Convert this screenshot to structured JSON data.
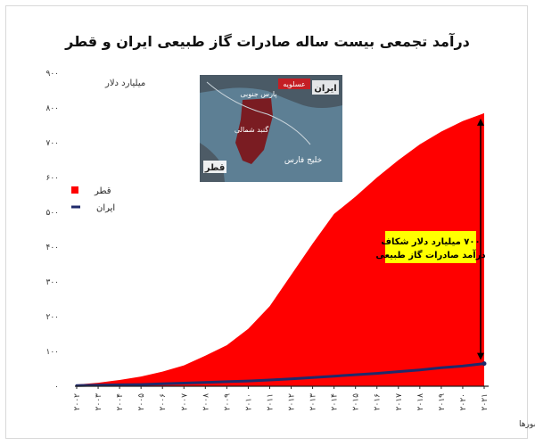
{
  "chart_data": {
    "type": "area",
    "title": "درآمد تجمعی بیست ساله صادرات گاز طبیعی ایران و قطر",
    "ylabel": "میلیارد دلار",
    "ylim": [
      0,
      900
    ],
    "yticks": [
      "۰",
      "۱۰۰",
      "۲۰۰",
      "۳۰۰",
      "۴۰۰",
      "۵۰۰",
      "۶۰۰",
      "۷۰۰",
      "۸۰۰",
      "۹۰۰"
    ],
    "ytick_values": [
      0,
      100,
      200,
      300,
      400,
      500,
      600,
      700,
      800,
      900
    ],
    "x": [
      "۲۰۰۲",
      "۲۰۰۳",
      "۲۰۰۴",
      "۲۰۰۵",
      "۲۰۰۶",
      "۲۰۰۷",
      "۲۰۰۸",
      "۲۰۰۹",
      "۲۰۱۰",
      "۲۰۱۱",
      "۲۰۱۲",
      "۲۰۱۳",
      "۲۰۱۴",
      "۲۰۱۵",
      "۲۰۱۶",
      "۲۰۱۷",
      "۲۰۱۸",
      "۲۰۱۹",
      "۲۰۲۰",
      "۲۰۲۱"
    ],
    "series": [
      {
        "name": "قطر",
        "kind": "area",
        "color": "#ff0000",
        "values": [
          5,
          10,
          18,
          28,
          42,
          60,
          88,
          118,
          165,
          230,
          320,
          410,
          495,
          545,
          600,
          650,
          695,
          732,
          762,
          785
        ]
      },
      {
        "name": "ایران",
        "kind": "line",
        "color": "#1f2a6b",
        "values": [
          2,
          3,
          4,
          5,
          7,
          9,
          11,
          13,
          15,
          18,
          21,
          25,
          29,
          33,
          37,
          42,
          47,
          53,
          58,
          65
        ]
      }
    ],
    "legend_position": "left",
    "annotation": {
      "lines": [
        "۷۰۰ میلیارد دلار شکاف",
        "درآمد صادرات گاز طبیعی"
      ],
      "bg_color": "#ffff00"
    },
    "grid": false
  },
  "map": {
    "labels": [
      "عسلویه",
      "ایران",
      "پارس جنوبی",
      "گنبد شمالی",
      "قطر",
      "خلیج فارس"
    ]
  },
  "source_note": "تحلیل و استنتاج: احسان سلطانی بر اساس داده های رسمی کشورها"
}
